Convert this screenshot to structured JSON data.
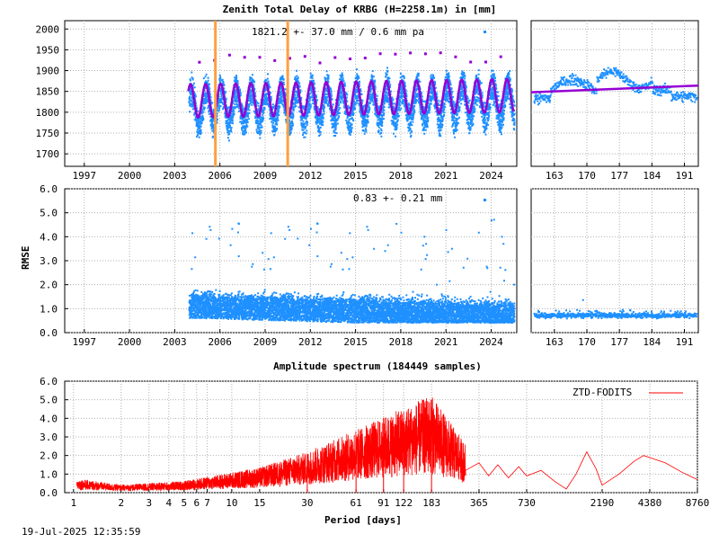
{
  "header": {
    "title": "Zenith Total Delay of KRBG (H=2258.1m) in [mm]",
    "ztd_stat": "1821.2 +-  37.0 mm /  0.6 mm pa",
    "rmse_stat": "0.83 +-  0.21 mm",
    "spectrum_title": "Amplitude spectrum (184449 samples)",
    "legend_label": "ZTD-FODITS",
    "timestamp": "19-Jul-2025 12:35:59"
  },
  "colors": {
    "series_blue": "#1e90ff",
    "model_purple": "#9400d3",
    "event_orange": "#ffa040",
    "spectrum_red": "#ff0000",
    "grid": "#b0b0b0"
  },
  "chart_data": [
    {
      "id": "ztd_timeseries",
      "type": "scatter",
      "title": "Zenith Total Delay of KRBG (H=2258.1m) in [mm]",
      "annotation": "1821.2 +-  37.0 mm /  0.6 mm pa",
      "xticks": [
        "1997",
        "2000",
        "2003",
        "2006",
        "2009",
        "2012",
        "2015",
        "2018",
        "2021",
        "2024"
      ],
      "yticks": [
        1700,
        1750,
        1800,
        1850,
        1900,
        1950,
        2000
      ],
      "xlim": [
        1995.7,
        2025.7
      ],
      "ylim": [
        1670,
        2020
      ],
      "data_start": 2003.9,
      "data_end": 2025.5,
      "mean": 1821.2,
      "sigma": 37.0,
      "seasonal_amplitude": 40,
      "trend_mm_per_year": 0.6,
      "event_lines_year": [
        2005.7,
        2010.5
      ],
      "grid": true
    },
    {
      "id": "ztd_recent",
      "type": "scatter",
      "xticks": [
        "163",
        "170",
        "177",
        "184",
        "191"
      ],
      "xlim": [
        158,
        194
      ],
      "ylim": [
        1670,
        2020
      ],
      "model_range": [
        1848,
        1864
      ],
      "grid": true
    },
    {
      "id": "rmse_timeseries",
      "type": "scatter",
      "ylabel": "RMSE",
      "annotation": "0.83 +-  0.21 mm",
      "xticks": [
        "1997",
        "2000",
        "2003",
        "2006",
        "2009",
        "2012",
        "2015",
        "2018",
        "2021",
        "2024"
      ],
      "yticks": [
        "0.0",
        "1.0",
        "2.0",
        "3.0",
        "4.0",
        "5.0",
        "6.0"
      ],
      "xlim": [
        1995.7,
        2025.7
      ],
      "ylim": [
        0,
        6
      ],
      "mean": 0.83,
      "sigma": 0.21,
      "grid": true
    },
    {
      "id": "rmse_recent",
      "type": "scatter",
      "xticks": [
        "163",
        "170",
        "177",
        "184",
        "191"
      ],
      "xlim": [
        158,
        194
      ],
      "ylim": [
        0,
        6
      ],
      "grid": true
    },
    {
      "id": "amplitude_spectrum",
      "type": "line",
      "title": "Amplitude spectrum (184449 samples)",
      "xlabel": "Period [days]",
      "xscale": "log",
      "xticks": [
        1,
        2,
        3,
        4,
        5,
        6,
        7,
        10,
        15,
        30,
        61,
        91,
        122,
        183,
        365,
        730,
        2190,
        4380,
        8760
      ],
      "yticks": [
        "0.0",
        "1.0",
        "2.0",
        "3.0",
        "4.0",
        "5.0",
        "6.0"
      ],
      "xlim": [
        0.88,
        8760
      ],
      "ylim": [
        0,
        6
      ],
      "series": [
        {
          "name": "ZTD-FODITS",
          "peaks": [
            {
              "period": 183,
              "amplitude": 5.0
            },
            {
              "period": 61,
              "amplitude": 2.6
            },
            {
              "period": 91,
              "amplitude": 2.6
            },
            {
              "period": 122,
              "amplitude": 3.0
            },
            {
              "period": 30,
              "amplitude": 2.1
            }
          ],
          "envelope": [
            [
              1.1,
              0.7
            ],
            [
              2,
              0.4
            ],
            [
              5,
              0.6
            ],
            [
              15,
              1.3
            ],
            [
              30,
              2.1
            ],
            [
              183,
              5.0
            ],
            [
              365,
              1.5
            ],
            [
              730,
              1.0
            ],
            [
              1200,
              0.5
            ],
            [
              1500,
              2.2
            ],
            [
              2190,
              0.4
            ],
            [
              4380,
              2.0
            ],
            [
              8760,
              0.7
            ]
          ]
        }
      ],
      "grid": true
    }
  ]
}
